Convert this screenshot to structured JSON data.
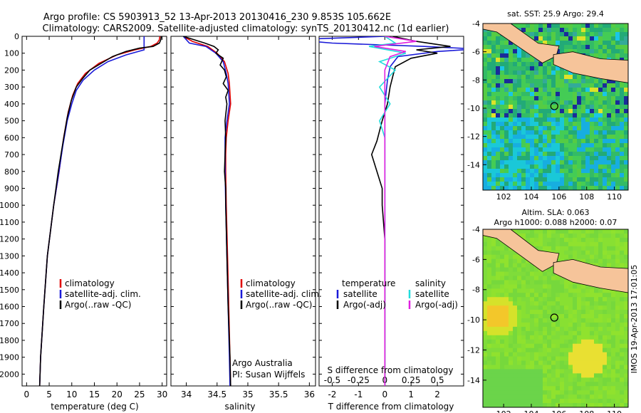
{
  "header": {
    "line1": "Argo profile: CS 5903913_52 13-Apr-2013 20130416_230 9.853S 105.662E",
    "line2": "Climatology: CARS2009. Satellite-adjusted climatology: synTS_20130412.nc (1d earlier)"
  },
  "colors": {
    "climatology": "#e00000",
    "satellite": "#1a1ad8",
    "argo": "#000000",
    "satellite_salinity": "#22dddd",
    "argo_salinity_diff": "#e020e0"
  },
  "chart_data": [
    {
      "type": "line",
      "xlabel": "temperature (deg C)",
      "xlim": [
        -1,
        31
      ],
      "xticks": [
        0,
        5,
        10,
        15,
        20,
        25,
        30
      ],
      "ylim": [
        2070,
        0
      ],
      "yticks": [
        0,
        100,
        200,
        300,
        400,
        500,
        600,
        700,
        800,
        900,
        1000,
        1100,
        1200,
        1300,
        1400,
        1500,
        1600,
        1700,
        1800,
        1900,
        2000
      ],
      "legend": [
        "climatology",
        "satellite-adj. clim.",
        "Argo(..raw -QC)"
      ],
      "series": [
        {
          "name": "climatology",
          "color": "red",
          "points": [
            [
              29.5,
              0
            ],
            [
              29.4,
              20
            ],
            [
              28.9,
              40
            ],
            [
              27.5,
              60
            ],
            [
              24,
              80
            ],
            [
              20,
              110
            ],
            [
              16,
              160
            ],
            [
              13,
              220
            ],
            [
              11.3,
              280
            ],
            [
              10.2,
              350
            ],
            [
              9.2,
              450
            ],
            [
              8.2,
              600
            ],
            [
              7.2,
              800
            ],
            [
              6,
              1000
            ],
            [
              4.6,
              1300
            ],
            [
              3.8,
              1600
            ],
            [
              3.1,
              1900
            ],
            [
              2.9,
              2070
            ]
          ]
        },
        {
          "name": "satellite-adj. clim.",
          "color": "blue",
          "points": [
            [
              26,
              0
            ],
            [
              26,
              80
            ],
            [
              22,
              110
            ],
            [
              18,
              150
            ],
            [
              15,
              200
            ],
            [
              12.5,
              260
            ],
            [
              11,
              320
            ],
            [
              10,
              400
            ],
            [
              9,
              500
            ],
            [
              8,
              650
            ],
            [
              7,
              830
            ],
            [
              6,
              1000
            ],
            [
              4.6,
              1300
            ],
            [
              3.8,
              1600
            ],
            [
              3.1,
              1900
            ],
            [
              2.9,
              2070
            ]
          ]
        },
        {
          "name": "Argo(..raw -QC)",
          "color": "black",
          "points": [
            [
              29.8,
              0
            ],
            [
              29.7,
              20
            ],
            [
              29.4,
              40
            ],
            [
              28,
              60
            ],
            [
              25,
              70
            ],
            [
              22,
              90
            ],
            [
              19,
              120
            ],
            [
              16.5,
              160
            ],
            [
              14,
              200
            ],
            [
              12.4,
              250
            ],
            [
              11,
              300
            ],
            [
              9.9,
              380
            ],
            [
              9,
              480
            ],
            [
              8.1,
              620
            ],
            [
              7,
              800
            ],
            [
              6,
              1000
            ],
            [
              4.6,
              1300
            ],
            [
              3.8,
              1600
            ],
            [
              3.1,
              1900
            ],
            [
              2.9,
              2070
            ]
          ]
        }
      ]
    },
    {
      "type": "line",
      "xlabel": "salinity",
      "xlim": [
        33.75,
        36.1
      ],
      "xticks": [
        34,
        34.5,
        35,
        35.5,
        36
      ],
      "ylim": [
        2070,
        0
      ],
      "legend": [
        "climatology",
        "satellite-adj. clim.",
        "Argo(..raw -QC)"
      ],
      "annotations": [
        "Argo Australia",
        "PI: Susan Wijffels"
      ],
      "series": [
        {
          "name": "climatology",
          "color": "red",
          "points": [
            [
              33.95,
              0
            ],
            [
              34.1,
              30
            ],
            [
              34.35,
              60
            ],
            [
              34.5,
              100
            ],
            [
              34.62,
              150
            ],
            [
              34.68,
              220
            ],
            [
              34.7,
              280
            ],
            [
              34.72,
              400
            ],
            [
              34.68,
              500
            ],
            [
              34.65,
              600
            ],
            [
              34.64,
              700
            ],
            [
              34.64,
              800
            ],
            [
              34.65,
              1000
            ],
            [
              34.67,
              1300
            ],
            [
              34.69,
              1600
            ],
            [
              34.71,
              1900
            ],
            [
              34.72,
              2070
            ]
          ]
        },
        {
          "name": "satellite-adj. clim.",
          "color": "blue",
          "points": [
            [
              33.95,
              0
            ],
            [
              34.05,
              40
            ],
            [
              34.32,
              60
            ],
            [
              34.48,
              100
            ],
            [
              34.6,
              150
            ],
            [
              34.65,
              220
            ],
            [
              34.68,
              280
            ],
            [
              34.7,
              400
            ],
            [
              34.66,
              500
            ],
            [
              34.63,
              600
            ],
            [
              34.63,
              700
            ],
            [
              34.63,
              800
            ],
            [
              34.64,
              1000
            ],
            [
              34.66,
              1300
            ],
            [
              34.68,
              1600
            ],
            [
              34.7,
              1900
            ],
            [
              34.71,
              2070
            ]
          ]
        },
        {
          "name": "Argo(..raw -QC)",
          "color": "black",
          "points": [
            [
              33.95,
              0
            ],
            [
              34.3,
              40
            ],
            [
              34.45,
              60
            ],
            [
              34.52,
              80
            ],
            [
              34.48,
              100
            ],
            [
              34.6,
              130
            ],
            [
              34.55,
              170
            ],
            [
              34.62,
              200
            ],
            [
              34.65,
              240
            ],
            [
              34.6,
              280
            ],
            [
              34.68,
              320
            ],
            [
              34.64,
              360
            ],
            [
              34.66,
              400
            ],
            [
              34.63,
              500
            ],
            [
              34.64,
              600
            ],
            [
              34.63,
              700
            ],
            [
              34.62,
              800
            ],
            [
              34.64,
              900
            ],
            [
              34.64,
              1000
            ],
            [
              34.66,
              1300
            ],
            [
              34.68,
              1600
            ],
            [
              34.71,
              1900
            ],
            [
              34.72,
              2070
            ]
          ]
        }
      ]
    },
    {
      "type": "line",
      "xlabel_T": "T difference from climatology",
      "xlabel_S": "S difference from climatology",
      "xlim": [
        -2.5,
        3.0
      ],
      "xticks_T": [
        -2,
        -1,
        0,
        1,
        2
      ],
      "xticks_S": [
        "-0.5",
        "-0.25",
        "0",
        "0.25",
        "0.5"
      ],
      "ylim": [
        2070,
        0
      ],
      "legend_T_title": "temperature",
      "legend_S_title": "salinity",
      "legend": [
        "satellite",
        "Argo(-adj)",
        "satellite",
        "Argo(-adj)"
      ],
      "series": [
        {
          "name": "temperature satellite",
          "color": "blue",
          "points": [
            [
              0,
              0
            ],
            [
              -3.5,
              20
            ],
            [
              -2,
              40
            ],
            [
              1.5,
              60
            ],
            [
              3.5,
              75
            ],
            [
              2,
              90
            ],
            [
              0.5,
              120
            ],
            [
              0.2,
              180
            ],
            [
              0.1,
              260
            ],
            [
              0,
              400
            ],
            [
              0,
              700
            ],
            [
              0,
              1000
            ],
            [
              0,
              1500
            ],
            [
              0,
              2070
            ]
          ]
        },
        {
          "name": "temperature Argo(-adj)",
          "color": "black",
          "points": [
            [
              0.3,
              0
            ],
            [
              1.2,
              30
            ],
            [
              2.5,
              60
            ],
            [
              1.2,
              80
            ],
            [
              2.0,
              100
            ],
            [
              1.0,
              130
            ],
            [
              0.4,
              180
            ],
            [
              0.3,
              240
            ],
            [
              0.2,
              300
            ],
            [
              0.1,
              400
            ],
            [
              -0.1,
              500
            ],
            [
              -0.3,
              620
            ],
            [
              -0.5,
              700
            ],
            [
              -0.3,
              800
            ],
            [
              -0.1,
              900
            ],
            [
              -0.1,
              1000
            ],
            [
              0,
              1200
            ],
            [
              0,
              1500
            ],
            [
              0,
              2070
            ]
          ]
        },
        {
          "name": "salinity satellite",
          "color": "cyan",
          "points": [
            [
              0,
              0
            ],
            [
              0.1,
              40
            ],
            [
              -0.15,
              60
            ],
            [
              0.2,
              100
            ],
            [
              -0.05,
              150
            ],
            [
              0.1,
              200
            ],
            [
              -0.05,
              300
            ],
            [
              0.05,
              400
            ],
            [
              -0.05,
              500
            ],
            [
              0,
              600
            ],
            [
              0,
              800
            ],
            [
              0,
              1000
            ],
            [
              0,
              1500
            ],
            [
              0,
              2070
            ]
          ]
        },
        {
          "name": "salinity Argo(-adj)",
          "color": "magenta",
          "points": [
            [
              0,
              0
            ],
            [
              0.3,
              30
            ],
            [
              -0.1,
              60
            ],
            [
              0.2,
              90
            ],
            [
              0.05,
              120
            ],
            [
              0,
              200
            ],
            [
              0,
              400
            ],
            [
              0,
              2070
            ]
          ]
        }
      ]
    },
    {
      "type": "heatmap",
      "title": "sat. SST: 25.9 Argo: 29.4",
      "xticks": [
        102,
        104,
        106,
        108,
        110
      ],
      "yticks": [
        -4,
        -6,
        -8,
        -10,
        -12,
        -14
      ],
      "xlim": [
        100.5,
        111
      ],
      "ylim": [
        -15.8,
        -4
      ],
      "marker": [
        105.662,
        -9.853
      ]
    },
    {
      "type": "heatmap",
      "title_line1": "Altim. SLA: 0.063",
      "title_line2": "Argo h1000: 0.088 h2000: 0.07",
      "xticks": [
        102,
        104,
        106,
        108,
        110
      ],
      "yticks": [
        -4,
        -6,
        -8,
        -10,
        -12,
        -14
      ],
      "xlim": [
        100.5,
        111
      ],
      "ylim": [
        -15.8,
        -4
      ],
      "marker": [
        105.662,
        -9.853
      ]
    }
  ],
  "footer": {
    "side_label": "IMOS 19-Apr-2013 17:01:05"
  }
}
